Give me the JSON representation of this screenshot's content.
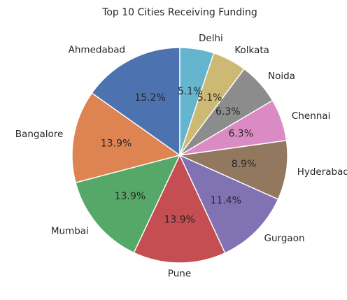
{
  "chart_data": {
    "type": "pie",
    "title": "Top 10 Cities Receiving Funding",
    "start_angle_deg": 90,
    "direction": "clockwise",
    "slices": [
      {
        "label": "Ahmedabad",
        "pct_label": "15.2%",
        "value": 15.2,
        "color": "#4C72B0"
      },
      {
        "label": "Bangalore",
        "pct_label": "13.9%",
        "value": 13.9,
        "color": "#DD8452"
      },
      {
        "label": "Mumbai",
        "pct_label": "13.9%",
        "value": 13.9,
        "color": "#55A868"
      },
      {
        "label": "Pune",
        "pct_label": "13.9%",
        "value": 13.9,
        "color": "#C44E52"
      },
      {
        "label": "Gurgaon",
        "pct_label": "11.4%",
        "value": 11.4,
        "color": "#8172B3"
      },
      {
        "label": "Hyderabad",
        "pct_label": "8.9%",
        "value": 8.9,
        "color": "#937860"
      },
      {
        "label": "Chennai",
        "pct_label": "6.3%",
        "value": 6.3,
        "color": "#DA8BC3"
      },
      {
        "label": "Noida",
        "pct_label": "6.3%",
        "value": 6.3,
        "color": "#8C8C8C"
      },
      {
        "label": "Kolkata",
        "pct_label": "5.1%",
        "value": 5.1,
        "color": "#CCB974"
      },
      {
        "label": "Delhi",
        "pct_label": "5.1%",
        "value": 5.1,
        "color": "#64B5CD"
      }
    ]
  }
}
